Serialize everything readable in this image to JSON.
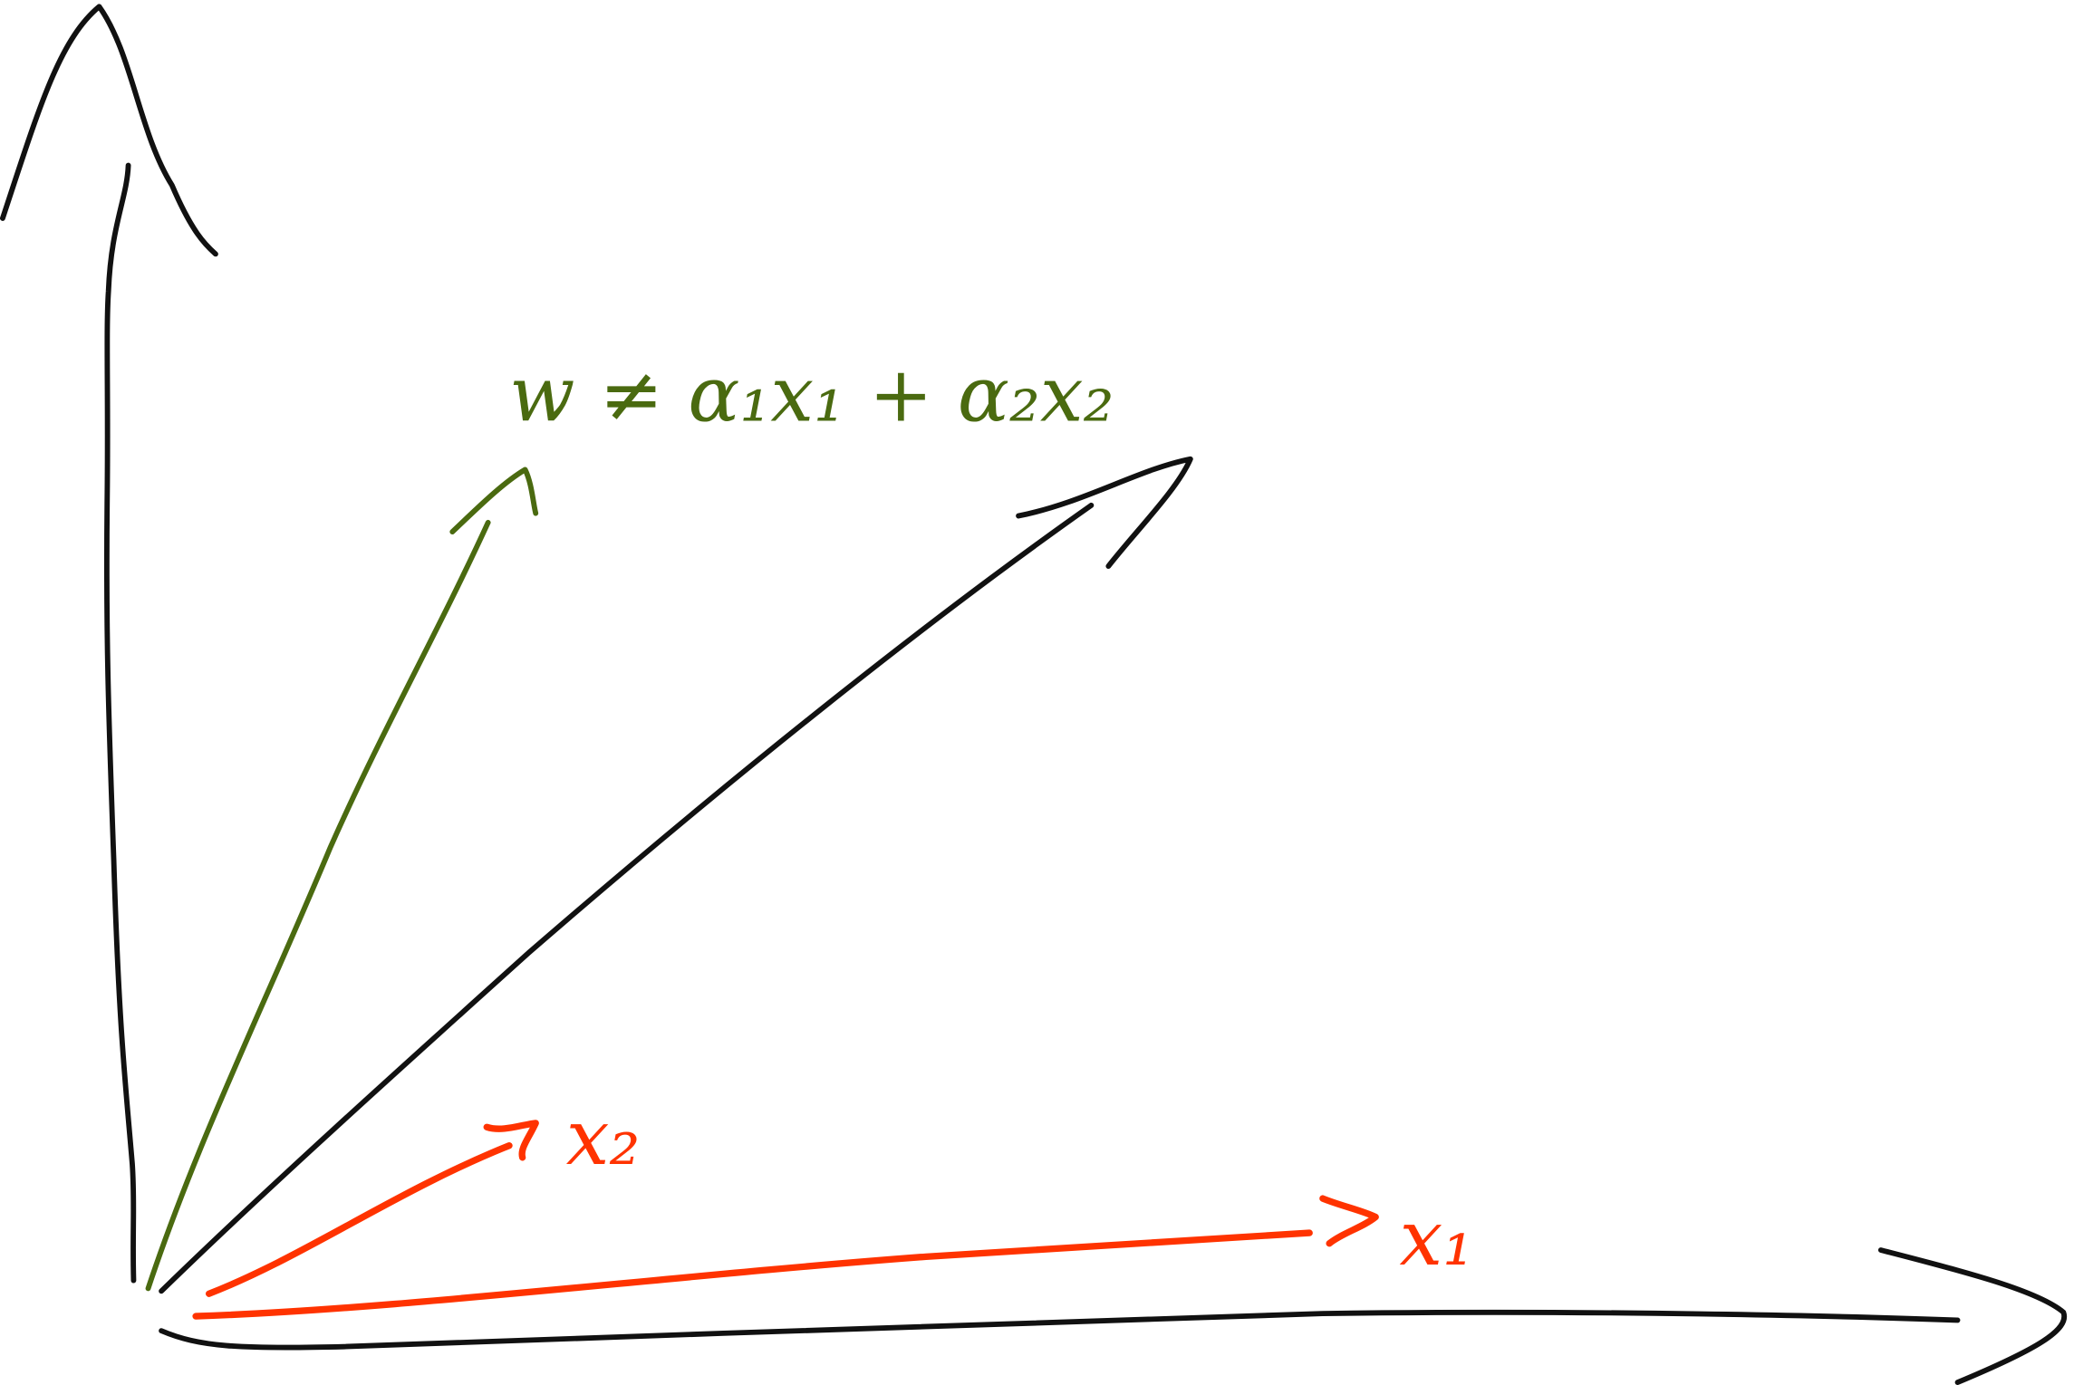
{
  "labels": {
    "combination": "w ≠ α₁x₁ + α₂x₂",
    "x2": "x₂",
    "x1": "x₁"
  }
}
